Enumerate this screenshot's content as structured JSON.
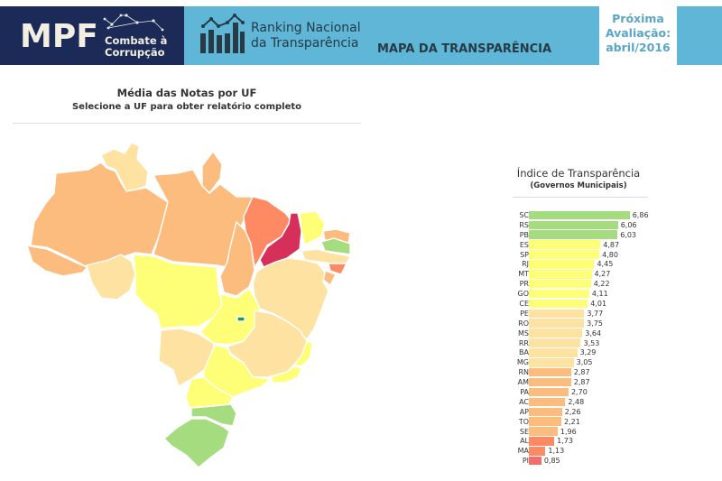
{
  "header": {
    "logo_mpf": "MPF",
    "logo_sub_line1": "Combate à",
    "logo_sub_line2": "Corrupção",
    "ranking_line1": "Ranking Nacional",
    "ranking_line2": "da Transparência",
    "page_title": "MAPA DA TRANSPARÊNCIA",
    "next_eval_line1": "Próxima",
    "next_eval_line2": "Avaliação:",
    "next_eval_line3": "abril/2016",
    "colors": {
      "navy": "#1b2a57",
      "light_blue": "#5fb6d6",
      "next_eval_text": "#5aa6c6"
    }
  },
  "map": {
    "title": "Média das Notas por UF",
    "subtitle": "Selecione a UF para obter relatório completo",
    "color_scale": {
      "green": "#a6dc80",
      "yellow": "#ffff77",
      "light_tan": "#fde2a2",
      "orange": "#fcbc7e",
      "salmon": "#fd8a62",
      "crimson": "#d6305a",
      "df_green": "#1a9850"
    }
  },
  "chart_data": {
    "type": "bar",
    "orientation": "horizontal",
    "title": "Índice de Transparência",
    "subtitle": "(Governos Municipais)",
    "xlabel": "",
    "ylabel": "",
    "xlim": [
      0,
      7
    ],
    "grid": false,
    "legend": null,
    "categories": [
      "SC",
      "RS",
      "PB",
      "ES",
      "SP",
      "RJ",
      "MT",
      "PR",
      "GO",
      "CE",
      "PE",
      "RO",
      "MS",
      "RR",
      "BA",
      "MG",
      "RN",
      "AM",
      "PA",
      "AC",
      "AP",
      "TO",
      "SE",
      "AL",
      "MA",
      "PI"
    ],
    "values": [
      6.86,
      6.06,
      6.03,
      4.87,
      4.8,
      4.45,
      4.27,
      4.22,
      4.11,
      4.01,
      3.77,
      3.75,
      3.64,
      3.53,
      3.29,
      3.05,
      2.87,
      2.87,
      2.7,
      2.48,
      2.26,
      2.21,
      1.96,
      1.73,
      1.13,
      0.85
    ],
    "value_labels": [
      "6,86",
      "6,06",
      "6,03",
      "4,87",
      "4,80",
      "4,45",
      "4,27",
      "4,22",
      "4,11",
      "4,01",
      "3,77",
      "3,75",
      "3,64",
      "3,53",
      "3,29",
      "3,05",
      "2,87",
      "2,87",
      "2,70",
      "2,48",
      "2,26",
      "2,21",
      "1,96",
      "1,73",
      "1,13",
      "0,85"
    ],
    "bar_colors": [
      "#a6dc80",
      "#a6dc80",
      "#a6dc80",
      "#ffff77",
      "#ffff77",
      "#ffff77",
      "#ffff77",
      "#ffff77",
      "#ffff77",
      "#ffff77",
      "#fde2a2",
      "#fde2a2",
      "#fde2a2",
      "#fde2a2",
      "#fde2a2",
      "#fde2a2",
      "#fcbc7e",
      "#fcbc7e",
      "#fcbc7e",
      "#fcbc7e",
      "#fcbc7e",
      "#fcbc7e",
      "#fcbc7e",
      "#fd8a62",
      "#fd8a62",
      "#f46d6d"
    ]
  }
}
